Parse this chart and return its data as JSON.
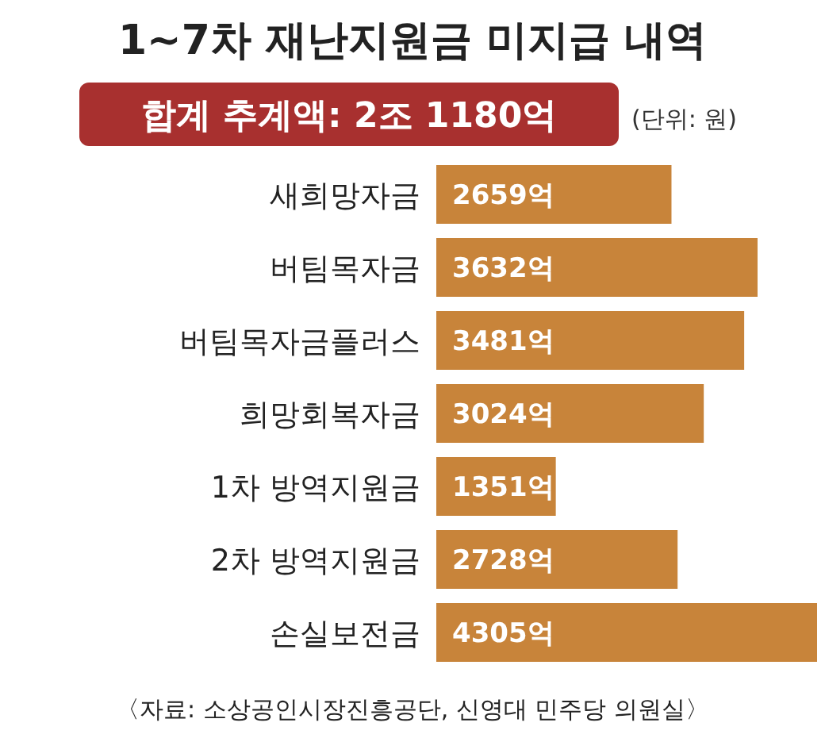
{
  "chart_data": {
    "type": "bar",
    "orientation": "horizontal",
    "title": "1~7차 재난지원금 미지급 내역",
    "subtitle": "합계 추계액: 2조 1180억",
    "categories": [
      "새희망자금",
      "버팀목자금",
      "버팀목자금플러스",
      "희망회복자금",
      "1차 방역지원금",
      "2차 방역지원금",
      "손실보전금"
    ],
    "values": [
      2659,
      3632,
      3481,
      3024,
      1351,
      2728,
      4305
    ],
    "value_labels": [
      "2659억",
      "3632억",
      "3481억",
      "3024억",
      "1351억",
      "2728억",
      "4305억"
    ],
    "color": "#c8843a",
    "annotations": [
      "(단위: 원)",
      "〈자료: 소상공인시장진흥공단, 신영대 민주당 의원실〉"
    ]
  }
}
